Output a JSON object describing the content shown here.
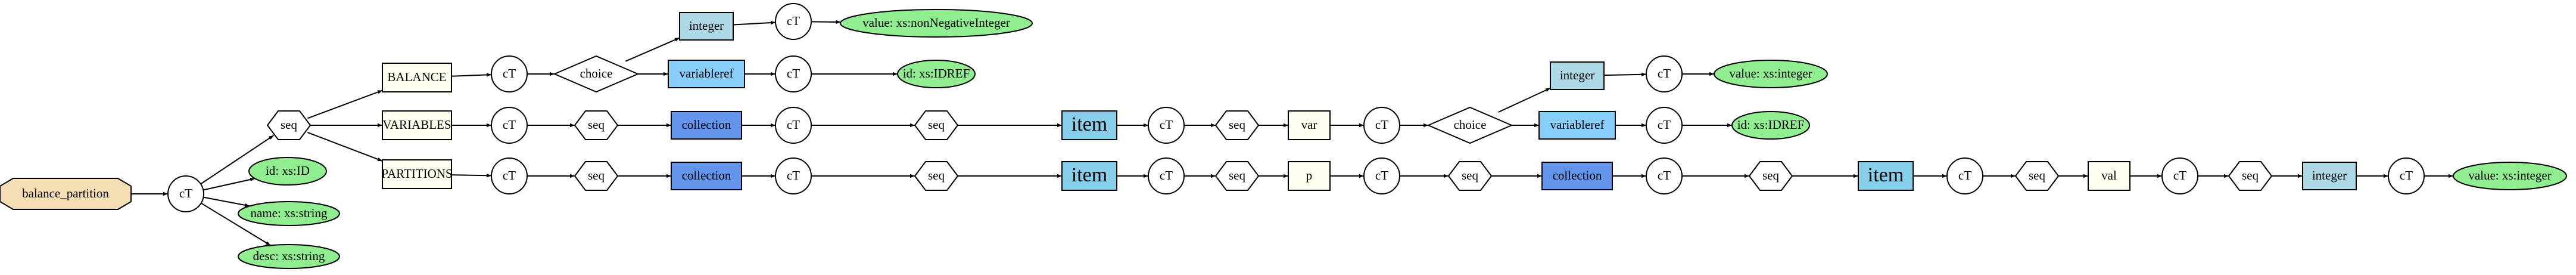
{
  "nodes": [
    "balance_partition",
    "cT",
    "seq",
    "id: xs:ID",
    "name: xs:string",
    "desc: xs:string",
    "BALANCE",
    "VARIABLES",
    "PARTITIONS",
    "cT",
    "cT",
    "cT",
    "choice",
    "seq",
    "seq",
    "integer",
    "variableref",
    "collection",
    "collection",
    "cT",
    "cT",
    "cT",
    "cT",
    "value: xs:nonNegativeInteger",
    "id: xs:IDREF",
    "seq",
    "seq",
    "item",
    "item",
    "cT",
    "cT",
    "seq",
    "seq",
    "var",
    "p",
    "cT",
    "cT",
    "choice",
    "seq",
    "integer",
    "variableref",
    "collection",
    "cT",
    "cT",
    "cT",
    "value: xs:integer",
    "id: xs:IDREF",
    "seq",
    "item",
    "cT",
    "seq",
    "val",
    "cT",
    "seq",
    "integer",
    "cT",
    "value: xs:integer"
  ]
}
